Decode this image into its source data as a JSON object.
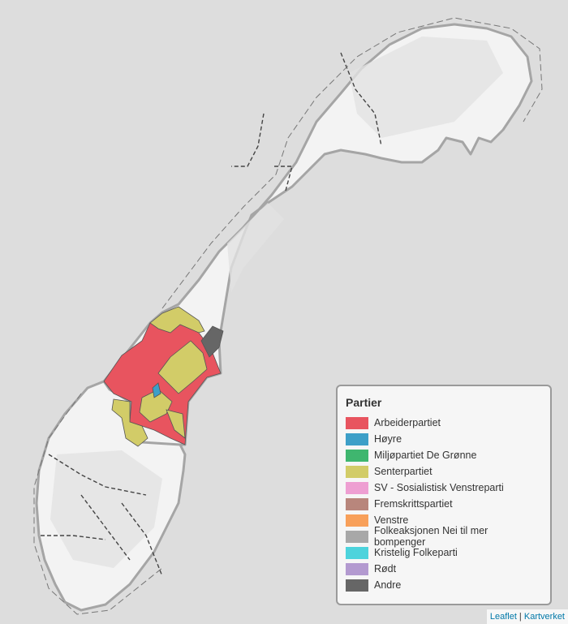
{
  "legend": {
    "title": "Partier",
    "items": [
      {
        "label": "Arbeiderpartiet",
        "color": "#e8545f"
      },
      {
        "label": "Høyre",
        "color": "#3d9fc8"
      },
      {
        "label": "Miljøpartiet De Grønne",
        "color": "#3fb66f"
      },
      {
        "label": "Senterpartiet",
        "color": "#d2cc68"
      },
      {
        "label": "SV - Sosialistisk Venstreparti",
        "color": "#ee9fd2"
      },
      {
        "label": "Fremskrittspartiet",
        "color": "#b8867c"
      },
      {
        "label": "Venstre",
        "color": "#f8a05a"
      },
      {
        "label": "Folkeaksjonen Nei til mer bompenger",
        "color": "#a8a8a8"
      },
      {
        "label": "Kristelig Folkeparti",
        "color": "#4dd3dc"
      },
      {
        "label": "Rødt",
        "color": "#b39ad0"
      },
      {
        "label": "Andre",
        "color": "#666666"
      }
    ]
  },
  "attribution": {
    "leaflet": "Leaflet",
    "separator": " | ",
    "source": "Kartverket"
  },
  "colors": {
    "background": "#dddddd",
    "land": "#f3f3f3",
    "border": "#9a9a9a"
  }
}
